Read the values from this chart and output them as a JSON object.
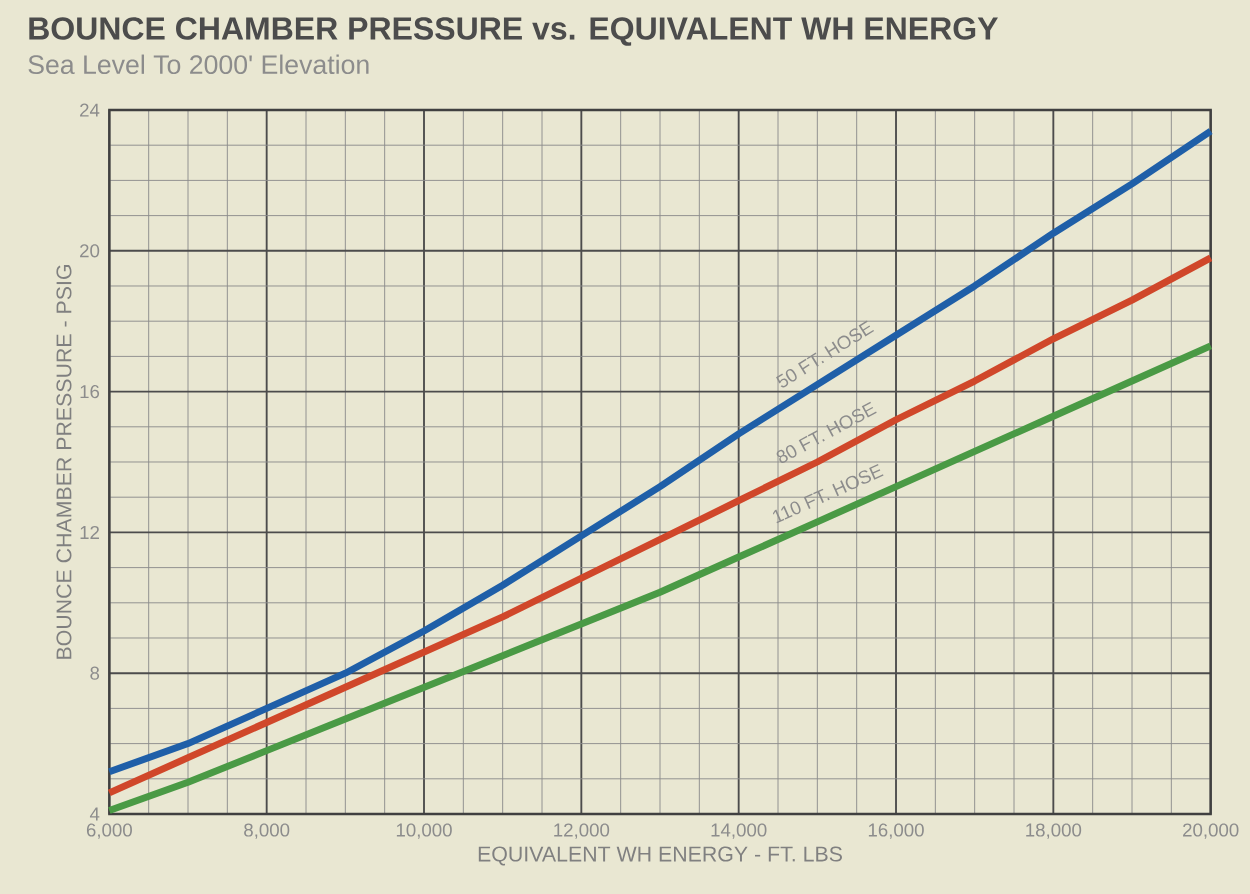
{
  "chart_data": {
    "type": "line",
    "title": "BOUNCE CHAMBER PRESSURE vs. EQUIVALENT WH ENERGY",
    "subtitle": "Sea Level To 2000' Elevation",
    "xlabel": "EQUIVALENT WH ENERGY - FT. LBS",
    "ylabel": "BOUNCE CHAMBER PRESSURE - PSIG",
    "x": [
      6000,
      7000,
      8000,
      9000,
      10000,
      11000,
      12000,
      13000,
      14000,
      15000,
      16000,
      17000,
      18000,
      19000,
      20000
    ],
    "series": [
      {
        "name": "50 FT. HOSE",
        "color": "#1f5fa8",
        "values": [
          5.2,
          6.0,
          7.0,
          8.0,
          9.2,
          10.5,
          11.9,
          13.3,
          14.8,
          16.2,
          17.6,
          19.0,
          20.5,
          21.9,
          23.4
        ]
      },
      {
        "name": "80 FT. HOSE",
        "color": "#d0472a",
        "values": [
          4.6,
          5.6,
          6.6,
          7.6,
          8.6,
          9.6,
          10.7,
          11.8,
          12.9,
          14.0,
          15.2,
          16.3,
          17.5,
          18.6,
          19.8
        ]
      },
      {
        "name": "110 FT. HOSE",
        "color": "#4a9a45",
        "values": [
          4.1,
          4.9,
          5.8,
          6.7,
          7.6,
          8.5,
          9.4,
          10.3,
          11.3,
          12.3,
          13.3,
          14.3,
          15.3,
          16.3,
          17.3
        ]
      }
    ],
    "xlim": [
      6000,
      20000
    ],
    "ylim": [
      4,
      24
    ],
    "xticks": [
      {
        "value": 6000,
        "label": "6,000"
      },
      {
        "value": 8000,
        "label": "8,000"
      },
      {
        "value": 10000,
        "label": "10,000"
      },
      {
        "value": 12000,
        "label": "12,000"
      },
      {
        "value": 14000,
        "label": "14,000"
      },
      {
        "value": 16000,
        "label": "16,000"
      },
      {
        "value": 18000,
        "label": "18,000"
      },
      {
        "value": 20000,
        "label": "20,000"
      }
    ],
    "yticks": [
      4,
      8,
      12,
      16,
      20,
      24
    ],
    "grid": true,
    "legend": false,
    "marker": "none",
    "line_style": "solid"
  }
}
